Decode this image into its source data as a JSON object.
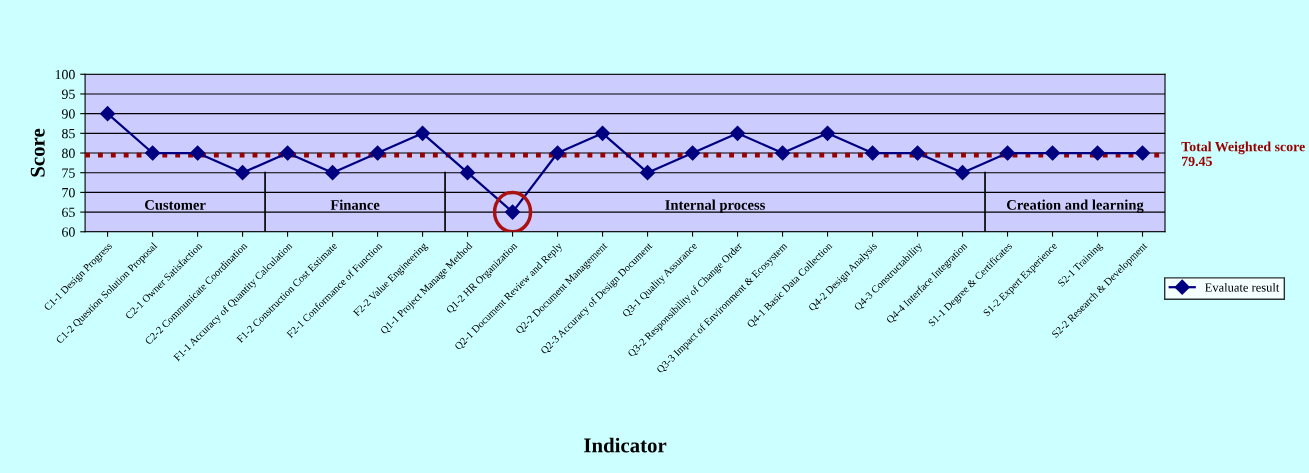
{
  "chart_data": {
    "type": "line",
    "xlabel": "Indicator",
    "ylabel": "Score",
    "categories": [
      "C1-1 Design Progress",
      "C1-2 Question Solution Proposal",
      "C2-1 Owner Satisfaction",
      "C2-2 Communicate Coordination",
      "F1-1 Accuracy of Quantity Calculation",
      "F1-2 Construction Cost Estimate",
      "F2-1 Conformance of Function",
      "F2-2 Value Engineering",
      "Q1-1 Project Manage Method",
      "Q1-2 HR Organization",
      "Q2-1 Document Review and Reply",
      "Q2-2 Document Management",
      "Q2-3 Accuracy of Design Document",
      "Q3-1 Quality Assurance",
      "Q3-2 Responsibility of Change Order",
      "Q3-3 Impact of Environment & Ecosystem",
      "Q4-1 Basic Data Collection",
      "Q4-2 Design Analysis",
      "Q4-3 Constructability",
      "Q4-4 Interface Integration",
      "S1-1 Degree & Certificates",
      "S1-2 Expert Experience",
      "S2-1 Training",
      "S2-2 Research & Development"
    ],
    "series": [
      {
        "name": "Evaluate result",
        "color": "#000080",
        "values": [
          90,
          80,
          80,
          75,
          80,
          75,
          80,
          85,
          75,
          65,
          80,
          85,
          75,
          80,
          85,
          80,
          85,
          80,
          80,
          75,
          80,
          80,
          80,
          80
        ]
      }
    ],
    "ylim": [
      60,
      100
    ],
    "yticks": [
      60,
      65,
      70,
      75,
      80,
      85,
      90,
      95,
      100
    ],
    "grid": "y",
    "marker": "diamond",
    "line_style": "solid",
    "legend": "right",
    "ref_lines": [
      {
        "axis": "y",
        "value": 79.45,
        "label": "Total Weighted score 79.45",
        "color": "#990000",
        "line_style": "dotted"
      }
    ],
    "annotations": [
      "Customer",
      "Finance",
      "Internal process",
      "Creation and learning"
    ]
  }
}
